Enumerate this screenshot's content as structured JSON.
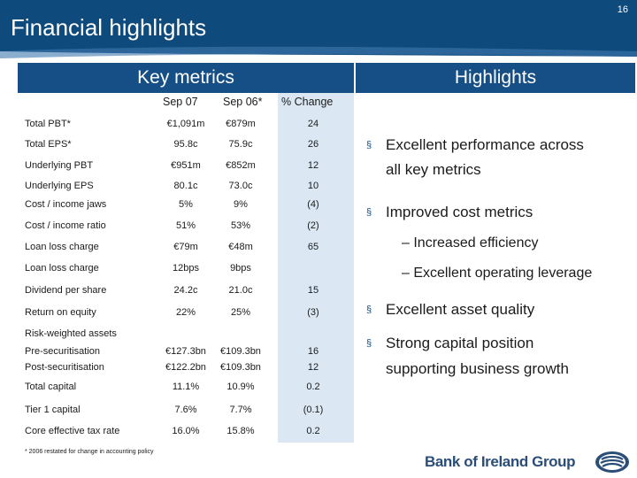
{
  "page_number": "16",
  "title": "Financial highlights",
  "sections": {
    "left": "Key metrics",
    "right": "Highlights"
  },
  "columns": {
    "sep07": "Sep 07",
    "sep06": "Sep 06*",
    "change": "% Change"
  },
  "metrics": [
    {
      "label": "Total PBT*",
      "sep07": "€1,091m",
      "sep06": "€879m",
      "change": "24"
    },
    {
      "label": "Total EPS*",
      "sep07": "95.8c",
      "sep06": "75.9c",
      "change": "26"
    },
    {
      "label": "Underlying PBT",
      "sep07": "€951m",
      "sep06": "€852m",
      "change": "12"
    },
    {
      "label": "Underlying EPS",
      "sep07": "80.1c",
      "sep06": "73.0c",
      "change": "10"
    },
    {
      "label": "Cost / income jaws",
      "sep07": "5%",
      "sep06": "9%",
      "change": "(4)"
    },
    {
      "label": "Cost / income ratio",
      "sep07": "51%",
      "sep06": "53%",
      "change": "(2)"
    },
    {
      "label": "Loan loss charge",
      "sep07": "€79m",
      "sep06": "€48m",
      "change": "65"
    },
    {
      "label": "Loan loss charge",
      "sep07": "12bps",
      "sep06": "9bps",
      "change": ""
    },
    {
      "label": "Dividend per share",
      "sep07": "24.2c",
      "sep06": "21.0c",
      "change": "15"
    },
    {
      "label": "Return on equity",
      "sep07": "22%",
      "sep06": "25%",
      "change": "(3)"
    },
    {
      "label": "Risk-weighted assets",
      "sep07": "",
      "sep06": "",
      "change": ""
    },
    {
      "label": "Pre-securitisation",
      "sep07": "€127.3bn",
      "sep06": "€109.3bn",
      "change": "16"
    },
    {
      "label": "Post-securitisation",
      "sep07": "€122.2bn",
      "sep06": "€109.3bn",
      "change": "12"
    },
    {
      "label": "Total capital",
      "sep07": "11.1%",
      "sep06": "10.9%",
      "change": "0.2"
    },
    {
      "label": "Tier 1 capital",
      "sep07": "7.6%",
      "sep06": "7.7%",
      "change": "(0.1)"
    },
    {
      "label": "Core effective tax rate",
      "sep07": "16.0%",
      "sep06": "15.8%",
      "change": "0.2"
    }
  ],
  "footnote": "* 2006 restated for change in accounting policy",
  "highlights": {
    "b1_line1": "Excellent performance across",
    "b1_line2": "all key metrics",
    "b2": "Improved cost metrics",
    "sub1": "– Increased efficiency",
    "sub2": "– Excellent operating leverage",
    "b3": "Excellent asset quality",
    "b4_line1": "Strong capital position",
    "b4_line2": "supporting business growth"
  },
  "bullet_glyph": "§",
  "logo_text": "Bank of Ireland Group",
  "colors": {
    "header": "#0e4a7c",
    "band": "#164f85",
    "change_column": "#dbe8f3",
    "logo": "#2b4e78"
  }
}
